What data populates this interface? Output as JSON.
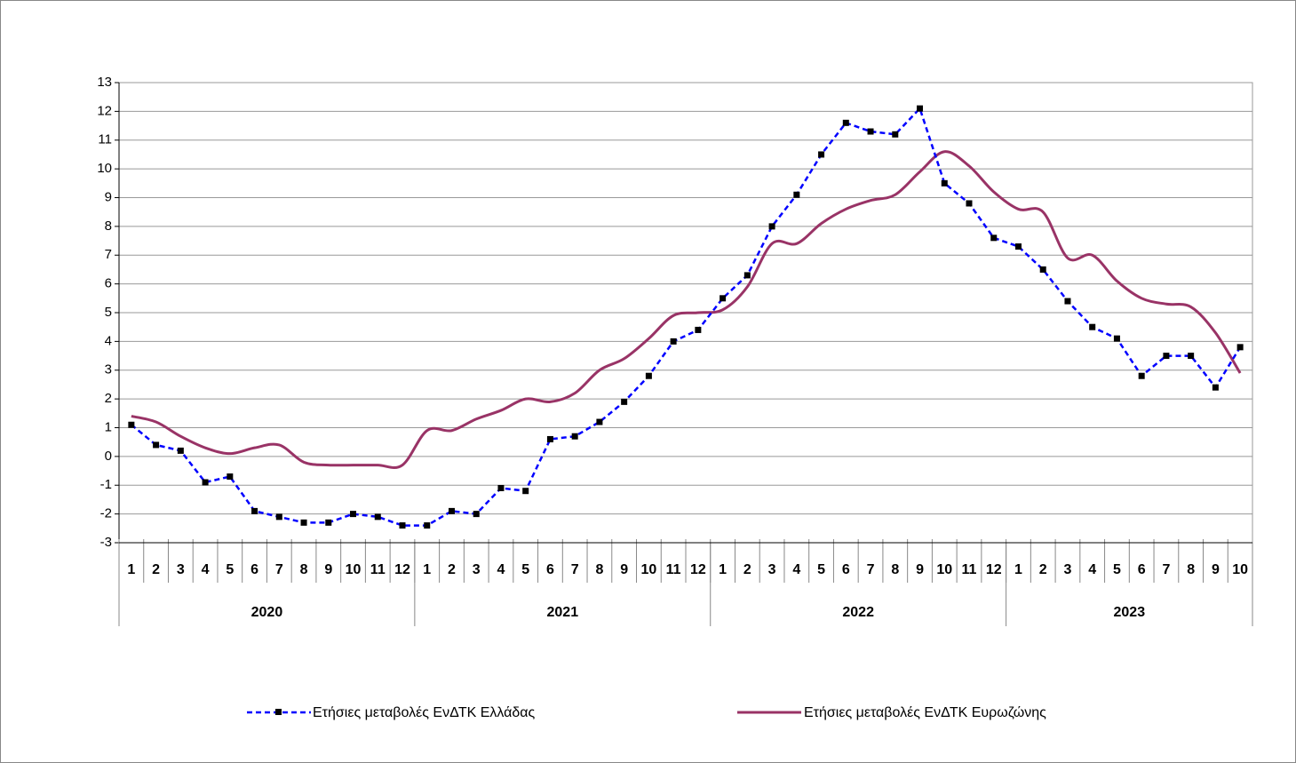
{
  "chart_data": {
    "type": "line",
    "categories": [
      "1",
      "2",
      "3",
      "4",
      "5",
      "6",
      "7",
      "8",
      "9",
      "10",
      "11",
      "12",
      "1",
      "2",
      "3",
      "4",
      "5",
      "6",
      "7",
      "8",
      "9",
      "10",
      "11",
      "12",
      "1",
      "2",
      "3",
      "4",
      "5",
      "6",
      "7",
      "8",
      "9",
      "10",
      "11",
      "12",
      "1",
      "2",
      "3",
      "4",
      "5",
      "6",
      "7",
      "8",
      "9",
      "10"
    ],
    "years": [
      "2020",
      "2021",
      "2022",
      "2023"
    ],
    "series": [
      {
        "name": "Ετήσιες μεταβολές ΕνΔΤΚ Ελλάδας",
        "color": "#0000ff",
        "dashed": true,
        "markers": true,
        "values": [
          1.1,
          0.4,
          0.2,
          -0.9,
          -0.7,
          -1.9,
          -2.1,
          -2.3,
          -2.3,
          -2.0,
          -2.1,
          -2.4,
          -2.4,
          -1.9,
          -2.0,
          -1.1,
          -1.2,
          0.6,
          0.7,
          1.2,
          1.9,
          2.8,
          4.0,
          4.4,
          5.5,
          6.3,
          8.0,
          9.1,
          10.5,
          11.6,
          11.3,
          11.2,
          12.1,
          9.5,
          8.8,
          7.6,
          7.3,
          6.5,
          5.4,
          4.5,
          4.1,
          2.8,
          3.5,
          3.5,
          2.4,
          3.8
        ]
      },
      {
        "name": "Ετήσιες μεταβολές ΕνΔΤΚ Ευρωζώνης",
        "color": "#993366",
        "dashed": false,
        "markers": false,
        "smooth": true,
        "values": [
          1.4,
          1.2,
          0.7,
          0.3,
          0.1,
          0.3,
          0.4,
          -0.2,
          -0.3,
          -0.3,
          -0.3,
          -0.3,
          0.9,
          0.9,
          1.3,
          1.6,
          2.0,
          1.9,
          2.2,
          3.0,
          3.4,
          4.1,
          4.9,
          5.0,
          5.1,
          5.9,
          7.4,
          7.4,
          8.1,
          8.6,
          8.9,
          9.1,
          9.9,
          10.6,
          10.1,
          9.2,
          8.6,
          8.5,
          6.9,
          7.0,
          6.1,
          5.5,
          5.3,
          5.2,
          4.3,
          2.9
        ]
      }
    ],
    "ylim": [
      -3,
      13
    ],
    "yticks": [
      -3,
      -2,
      -1,
      0,
      1,
      2,
      3,
      4,
      5,
      6,
      7,
      8,
      9,
      10,
      11,
      12,
      13
    ],
    "grid": true,
    "legend": "bottom"
  }
}
